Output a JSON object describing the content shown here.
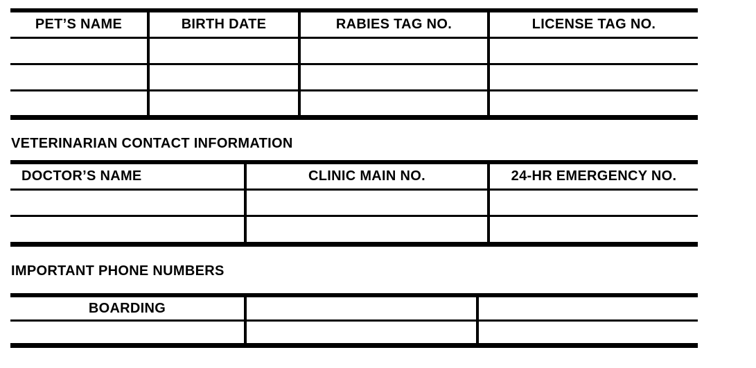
{
  "page": {
    "background": "#ffffff",
    "text_color": "#000000",
    "line_color": "#000000"
  },
  "pet_table": {
    "columns": [
      "PET’S NAME",
      "BIRTH DATE",
      "RABIES TAG NO.",
      "LICENSE TAG NO."
    ],
    "rows": [
      [
        "",
        "",
        "",
        ""
      ],
      [
        "",
        "",
        "",
        ""
      ],
      [
        "",
        "",
        "",
        ""
      ]
    ]
  },
  "vet_section": {
    "heading": "VETERINARIAN CONTACT INFORMATION",
    "columns": [
      "DOCTOR’S NAME",
      "CLINIC MAIN NO.",
      "24-HR EMERGENCY NO."
    ],
    "rows": [
      [
        "",
        "",
        ""
      ],
      [
        "",
        "",
        ""
      ]
    ]
  },
  "phone_section": {
    "heading": "IMPORTANT PHONE NUMBERS",
    "rows": [
      [
        "BOARDING",
        "",
        ""
      ],
      [
        "",
        "",
        ""
      ]
    ]
  }
}
